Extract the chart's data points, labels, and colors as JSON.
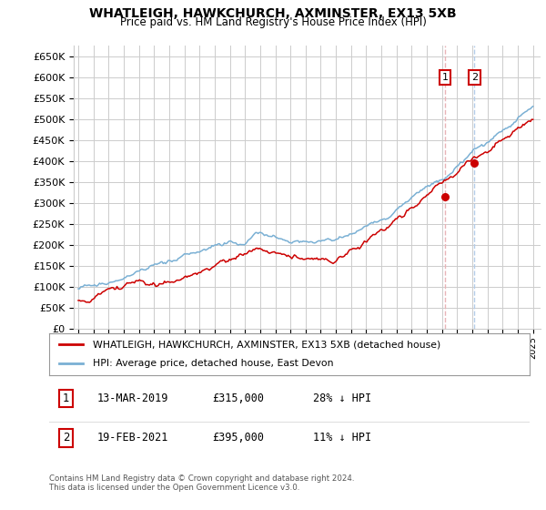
{
  "title": "WHATLEIGH, HAWKCHURCH, AXMINSTER, EX13 5XB",
  "subtitle": "Price paid vs. HM Land Registry's House Price Index (HPI)",
  "ylim": [
    0,
    675000
  ],
  "yticks": [
    0,
    50000,
    100000,
    150000,
    200000,
    250000,
    300000,
    350000,
    400000,
    450000,
    500000,
    550000,
    600000,
    650000
  ],
  "ytick_labels": [
    "£0",
    "£50K",
    "£100K",
    "£150K",
    "£200K",
    "£250K",
    "£300K",
    "£350K",
    "£400K",
    "£450K",
    "£500K",
    "£550K",
    "£600K",
    "£650K"
  ],
  "legend_entries": [
    "WHATLEIGH, HAWKCHURCH, AXMINSTER, EX13 5XB (detached house)",
    "HPI: Average price, detached house, East Devon"
  ],
  "annotations": [
    {
      "label": "1",
      "date": "13-MAR-2019",
      "price": "£315,000",
      "hpi_diff": "28% ↓ HPI",
      "year": 2019.2,
      "y_val": 315000
    },
    {
      "label": "2",
      "date": "19-FEB-2021",
      "price": "£395,000",
      "hpi_diff": "11% ↓ HPI",
      "year": 2021.13,
      "y_val": 395000
    }
  ],
  "footer": "Contains HM Land Registry data © Crown copyright and database right 2024.\nThis data is licensed under the Open Government Licence v3.0.",
  "red_color": "#cc0000",
  "blue_color": "#7ab0d4",
  "grid_color": "#cccccc",
  "xmin": 1995,
  "xmax": 2025
}
